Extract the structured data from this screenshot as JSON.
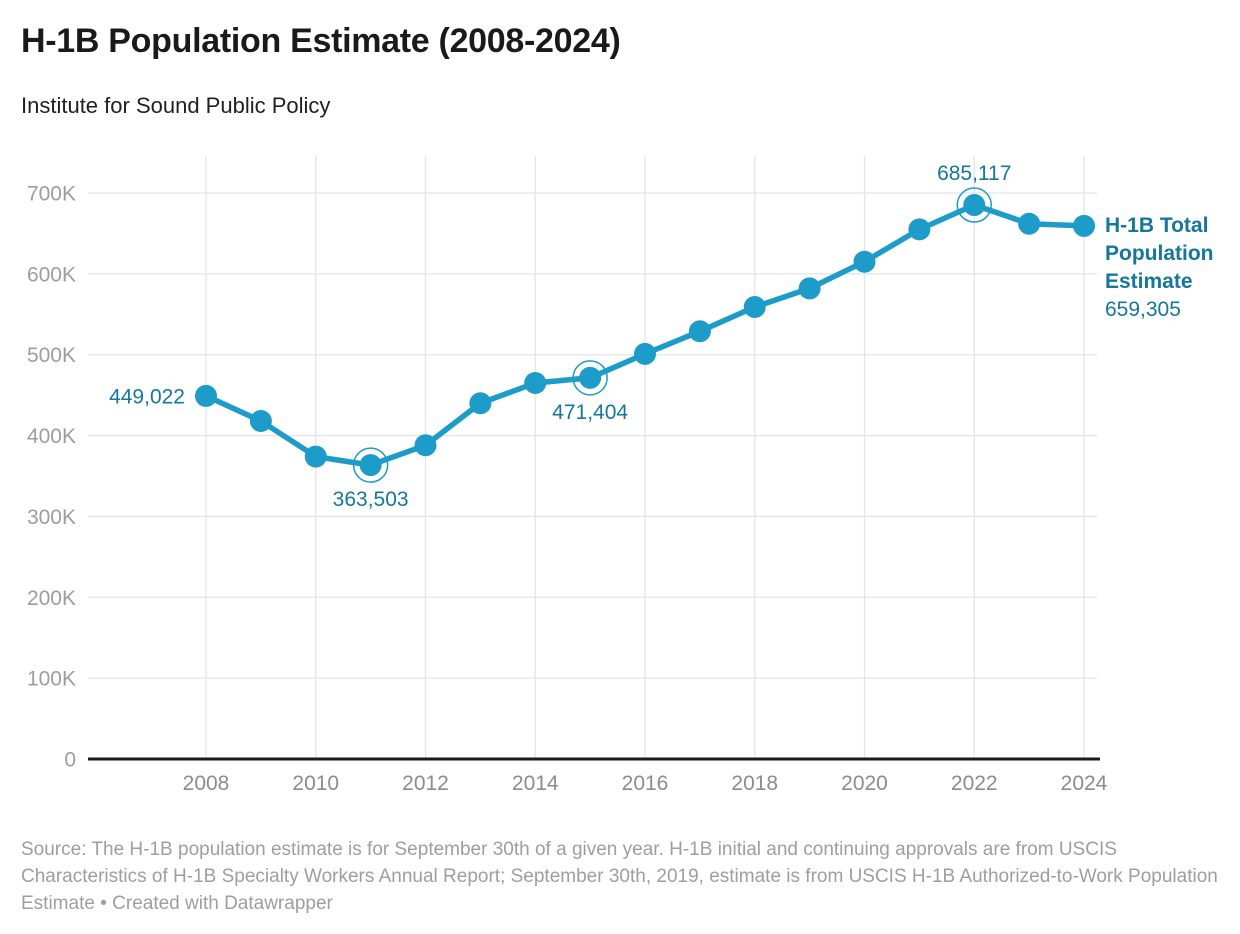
{
  "header": {
    "title": "H-1B Population Estimate (2008-2024)",
    "subtitle": "Institute for Sound Public Policy"
  },
  "footer": {
    "source_text": "Source: The H-1B population estimate is for September 30th of a given year. H-1B initial and continuing approvals are from USCIS Characteristics of H-1B Specialty Workers Annual Report; September 30th, 2019, estimate is from USCIS H-1B Authorized-to-Work Population Estimate",
    "separator": "•",
    "credit": "Created with Datawrapper"
  },
  "colors": {
    "line": "#1d9bc9",
    "point": "#1d9bc9",
    "highlight_ring": "#1d9bc9",
    "point_label": "#15769e",
    "end_label": "#15769e",
    "y_tick_label": "#9d9d9d",
    "x_tick_label": "#8c8c8c",
    "gridline": "#e4e4e4",
    "baseline": "#1a1a1a",
    "title": "#1a1a1a",
    "footer": "#9e9e9e"
  },
  "chart_data": {
    "type": "line",
    "title": "H-1B Population Estimate (2008-2024)",
    "subtitle": "Institute for Sound Public Policy",
    "x": [
      2008,
      2009,
      2010,
      2011,
      2012,
      2013,
      2014,
      2015,
      2016,
      2017,
      2018,
      2019,
      2020,
      2021,
      2022,
      2023,
      2024
    ],
    "series": [
      {
        "name": "H-1B Total Population Estimate",
        "values": [
          449022,
          418000,
          374000,
          363503,
          388000,
          440000,
          465000,
          471404,
          501000,
          529000,
          559000,
          582000,
          615000,
          655000,
          685117,
          662000,
          659305
        ]
      }
    ],
    "xlabel": "",
    "ylabel": "",
    "xlim": [
      2008,
      2024
    ],
    "ylim": [
      0,
      700000
    ],
    "grid": "on",
    "x_ticks": [
      2008,
      2010,
      2012,
      2014,
      2016,
      2018,
      2020,
      2022,
      2024
    ],
    "y_ticks": [
      {
        "value": 0,
        "label": "0"
      },
      {
        "value": 100000,
        "label": "100K"
      },
      {
        "value": 200000,
        "label": "200K"
      },
      {
        "value": 300000,
        "label": "300K"
      },
      {
        "value": 400000,
        "label": "400K"
      },
      {
        "value": 500000,
        "label": "500K"
      },
      {
        "value": 600000,
        "label": "600K"
      },
      {
        "value": 700000,
        "label": "700K"
      }
    ],
    "point_labels": [
      {
        "x": 2008,
        "label": "449,022",
        "placement": "left",
        "highlight_ring": false
      },
      {
        "x": 2011,
        "label": "363,503",
        "placement": "below",
        "highlight_ring": true
      },
      {
        "x": 2015,
        "label": "471,404",
        "placement": "below",
        "highlight_ring": true
      },
      {
        "x": 2022,
        "label": "685,117",
        "placement": "above",
        "highlight_ring": true
      }
    ],
    "end_label": {
      "title": "H-1B Total Population Estimate",
      "value": "659,305",
      "position": "right-of-last-point"
    },
    "legend_position": "end-of-line"
  }
}
